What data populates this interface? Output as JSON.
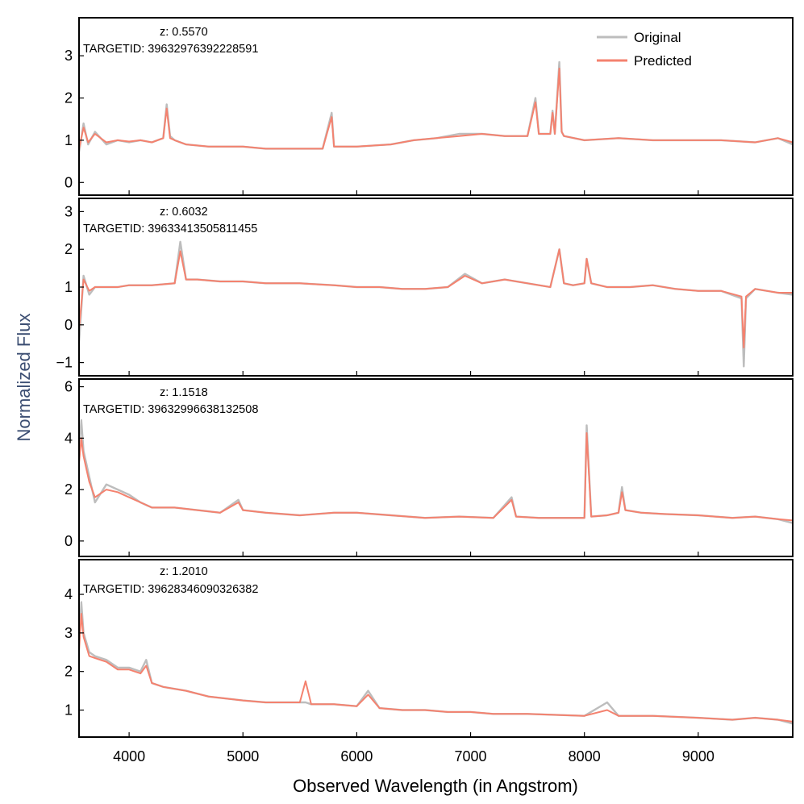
{
  "chart_data": {
    "type": "line",
    "xlabel": "Observed Wavelength (in Angstrom)",
    "ylabel": "Normalized Flux",
    "xlim": [
      3560,
      9830
    ],
    "xticks": [
      4000,
      5000,
      6000,
      7000,
      8000,
      9000
    ],
    "colors": {
      "original": "#bdbdbd",
      "predicted": "#f4826f",
      "ylabel": "#3d4f73"
    },
    "legend": {
      "placement": "top-right",
      "entries": [
        "Original",
        "Predicted"
      ]
    },
    "panels": [
      {
        "z_label": "z: 0.5570",
        "targetid_label": "TARGETID: 39632976392228591",
        "ylim": [
          -0.3,
          3.9
        ],
        "yticks": [
          0,
          1,
          2,
          3
        ],
        "x": [
          3560,
          3600,
          3640,
          3700,
          3800,
          3900,
          4000,
          4100,
          4200,
          4300,
          4330,
          4360,
          4400,
          4500,
          4700,
          5000,
          5200,
          5500,
          5700,
          5780,
          5800,
          6000,
          6300,
          6500,
          6700,
          6900,
          7100,
          7300,
          7500,
          7570,
          7600,
          7700,
          7720,
          7740,
          7780,
          7800,
          7820,
          8000,
          8300,
          8600,
          8900,
          9200,
          9500,
          9700,
          9830
        ],
        "series": [
          {
            "name": "Original",
            "values": [
              0.7,
              1.4,
              0.9,
              1.2,
              0.9,
              1.0,
              0.95,
              1.0,
              0.95,
              1.05,
              1.85,
              1.1,
              1.0,
              0.9,
              0.85,
              0.85,
              0.8,
              0.8,
              0.8,
              1.65,
              0.85,
              0.85,
              0.9,
              1.0,
              1.05,
              1.15,
              1.15,
              1.1,
              1.1,
              2.0,
              1.15,
              1.15,
              1.7,
              1.15,
              2.85,
              1.2,
              1.1,
              1.0,
              1.05,
              1.0,
              1.0,
              1.0,
              0.95,
              1.05,
              0.9
            ]
          },
          {
            "name": "Predicted",
            "values": [
              0.8,
              1.3,
              0.95,
              1.15,
              0.95,
              1.0,
              0.97,
              1.0,
              0.95,
              1.05,
              1.75,
              1.05,
              1.0,
              0.9,
              0.85,
              0.85,
              0.8,
              0.8,
              0.8,
              1.55,
              0.85,
              0.85,
              0.9,
              1.0,
              1.05,
              1.1,
              1.15,
              1.1,
              1.1,
              1.9,
              1.15,
              1.15,
              1.65,
              1.15,
              2.7,
              1.2,
              1.1,
              1.0,
              1.05,
              1.0,
              1.0,
              1.0,
              0.95,
              1.05,
              0.95
            ]
          }
        ]
      },
      {
        "z_label": "z: 0.6032",
        "targetid_label": "TARGETID: 39633413505811455",
        "ylim": [
          -1.35,
          3.35
        ],
        "yticks": [
          -1,
          0,
          1,
          2,
          3
        ],
        "x": [
          3560,
          3600,
          3650,
          3700,
          3800,
          3900,
          4000,
          4200,
          4400,
          4450,
          4500,
          4600,
          4800,
          5000,
          5200,
          5500,
          5800,
          6000,
          6200,
          6400,
          6600,
          6800,
          6950,
          7100,
          7300,
          7500,
          7700,
          7780,
          7820,
          7900,
          8000,
          8020,
          8060,
          8200,
          8400,
          8600,
          8800,
          9000,
          9200,
          9380,
          9400,
          9420,
          9500,
          9700,
          9830
        ],
        "series": [
          {
            "name": "Original",
            "values": [
              -0.5,
              1.3,
              0.8,
              1.0,
              1.0,
              1.0,
              1.05,
              1.05,
              1.1,
              2.2,
              1.2,
              1.2,
              1.15,
              1.15,
              1.1,
              1.1,
              1.05,
              1.0,
              1.0,
              0.95,
              0.95,
              1.0,
              1.35,
              1.1,
              1.2,
              1.1,
              1.0,
              2.0,
              1.1,
              1.05,
              1.1,
              1.75,
              1.1,
              1.0,
              1.0,
              1.05,
              0.95,
              0.9,
              0.9,
              0.7,
              -1.1,
              0.7,
              0.95,
              0.85,
              0.8
            ]
          },
          {
            "name": "Predicted",
            "values": [
              -0.1,
              1.2,
              0.9,
              1.0,
              1.0,
              1.0,
              1.05,
              1.05,
              1.1,
              1.95,
              1.2,
              1.2,
              1.15,
              1.15,
              1.1,
              1.1,
              1.05,
              1.0,
              1.0,
              0.95,
              0.95,
              1.0,
              1.3,
              1.1,
              1.2,
              1.1,
              1.0,
              2.0,
              1.1,
              1.05,
              1.1,
              1.75,
              1.1,
              1.0,
              1.0,
              1.05,
              0.95,
              0.9,
              0.9,
              0.75,
              -0.6,
              0.75,
              0.95,
              0.85,
              0.85
            ]
          }
        ]
      },
      {
        "z_label": "z: 1.1518",
        "targetid_label": "TARGETID: 39632996638132508",
        "ylim": [
          -0.6,
          6.3
        ],
        "yticks": [
          0,
          2,
          4,
          6
        ],
        "x": [
          3560,
          3580,
          3600,
          3650,
          3700,
          3800,
          3900,
          4000,
          4100,
          4200,
          4400,
          4600,
          4800,
          4960,
          5000,
          5200,
          5500,
          5800,
          6000,
          6300,
          6600,
          6900,
          7200,
          7360,
          7400,
          7600,
          7800,
          8000,
          8020,
          8060,
          8200,
          8300,
          8330,
          8360,
          8500,
          8700,
          9000,
          9300,
          9500,
          9700,
          9830
        ],
        "series": [
          {
            "name": "Original",
            "values": [
              3.5,
              4.7,
              3.5,
              2.5,
              1.5,
              2.2,
              2.0,
              1.8,
              1.5,
              1.3,
              1.3,
              1.2,
              1.1,
              1.6,
              1.2,
              1.1,
              1.0,
              1.1,
              1.1,
              1.0,
              0.9,
              0.95,
              0.9,
              1.7,
              0.95,
              0.9,
              0.9,
              0.9,
              4.5,
              0.95,
              1.0,
              1.1,
              2.1,
              1.2,
              1.1,
              1.05,
              1.0,
              0.9,
              0.95,
              0.85,
              0.7
            ]
          },
          {
            "name": "Predicted",
            "values": [
              3.0,
              4.0,
              3.3,
              2.3,
              1.7,
              2.0,
              1.9,
              1.7,
              1.5,
              1.3,
              1.3,
              1.2,
              1.1,
              1.5,
              1.2,
              1.1,
              1.0,
              1.1,
              1.1,
              1.0,
              0.9,
              0.95,
              0.9,
              1.6,
              0.95,
              0.9,
              0.9,
              0.9,
              4.2,
              0.95,
              1.0,
              1.1,
              1.9,
              1.2,
              1.1,
              1.05,
              1.0,
              0.9,
              0.95,
              0.85,
              0.8
            ]
          }
        ]
      },
      {
        "z_label": "z: 1.2010",
        "targetid_label": "TARGETID: 39628346090326382",
        "ylim": [
          0.3,
          4.9
        ],
        "yticks": [
          1,
          2,
          3,
          4
        ],
        "x": [
          3560,
          3580,
          3600,
          3650,
          3700,
          3800,
          3900,
          4000,
          4100,
          4150,
          4200,
          4300,
          4500,
          4700,
          5000,
          5200,
          5500,
          5550,
          5600,
          5800,
          6000,
          6100,
          6200,
          6400,
          6600,
          6800,
          7000,
          7200,
          7500,
          8000,
          8200,
          8300,
          8600,
          9000,
          9300,
          9500,
          9700,
          9830
        ],
        "series": [
          {
            "name": "Original",
            "values": [
              2.8,
              3.8,
              3.0,
              2.5,
              2.4,
              2.3,
              2.1,
              2.1,
              2.0,
              2.3,
              1.7,
              1.6,
              1.5,
              1.35,
              1.25,
              1.2,
              1.2,
              1.2,
              1.15,
              1.15,
              1.1,
              1.5,
              1.05,
              1.0,
              1.0,
              0.95,
              0.95,
              0.9,
              0.9,
              0.85,
              1.2,
              0.85,
              0.85,
              0.8,
              0.75,
              0.8,
              0.75,
              0.65
            ]
          },
          {
            "name": "Predicted",
            "values": [
              2.5,
              3.5,
              2.9,
              2.4,
              2.35,
              2.25,
              2.05,
              2.05,
              1.95,
              2.15,
              1.7,
              1.6,
              1.5,
              1.35,
              1.25,
              1.2,
              1.2,
              1.75,
              1.15,
              1.15,
              1.1,
              1.4,
              1.05,
              1.0,
              1.0,
              0.95,
              0.95,
              0.9,
              0.9,
              0.85,
              1.0,
              0.85,
              0.85,
              0.8,
              0.75,
              0.8,
              0.75,
              0.7
            ]
          }
        ]
      }
    ]
  }
}
